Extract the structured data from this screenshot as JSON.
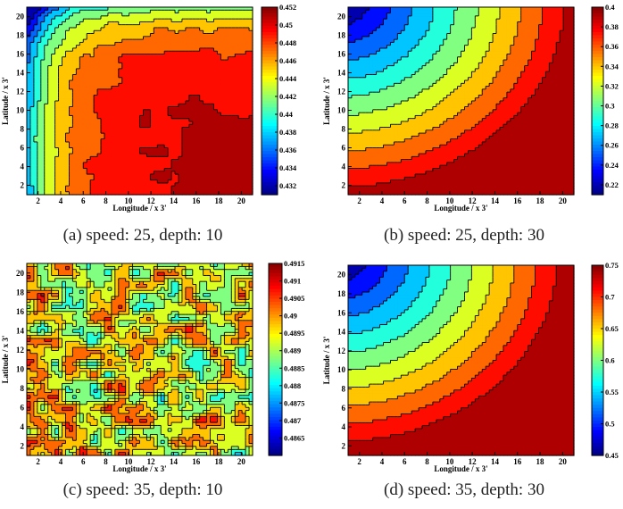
{
  "chart_data": [
    {
      "type": "heatmap",
      "caption": "(a) speed: 25, depth: 10",
      "xlabel": "Longitude / x 3'",
      "ylabel": "Latitude / x 3'",
      "xlim": [
        1,
        21
      ],
      "ylim": [
        1,
        21
      ],
      "xticks": [
        "2",
        "4",
        "6",
        "8",
        "10",
        "12",
        "14",
        "16",
        "18",
        "20"
      ],
      "yticks": [
        "2",
        "4",
        "6",
        "8",
        "10",
        "12",
        "14",
        "16",
        "18",
        "20"
      ],
      "colorbar": {
        "min": 0.431,
        "max": 0.452,
        "ticks": [
          "0.452",
          "0.45",
          "0.448",
          "0.446",
          "0.444",
          "0.442",
          "0.44",
          "0.438",
          "0.436",
          "0.434",
          "0.432"
        ]
      }
    },
    {
      "type": "heatmap",
      "caption": "(b) speed: 25, depth: 30",
      "xlabel": "Longitude / x 3'",
      "ylabel": "Latitude / x 3'",
      "xlim": [
        1,
        21
      ],
      "ylim": [
        1,
        21
      ],
      "xticks": [
        "2",
        "4",
        "6",
        "8",
        "10",
        "12",
        "14",
        "16",
        "18",
        "20"
      ],
      "yticks": [
        "2",
        "4",
        "6",
        "8",
        "10",
        "12",
        "14",
        "16",
        "18",
        "20"
      ],
      "colorbar": {
        "min": 0.21,
        "max": 0.4,
        "ticks": [
          "0.4",
          "0.38",
          "0.36",
          "0.34",
          "0.32",
          "0.3",
          "0.28",
          "0.26",
          "0.24",
          "0.22"
        ]
      }
    },
    {
      "type": "heatmap",
      "caption": "(c) speed: 35, depth: 10",
      "xlabel": "Longitude / x 3'",
      "ylabel": "Latitude / x 3'",
      "xlim": [
        1,
        21
      ],
      "ylim": [
        1,
        21
      ],
      "xticks": [
        "2",
        "4",
        "6",
        "8",
        "10",
        "12",
        "14",
        "16",
        "18",
        "20"
      ],
      "yticks": [
        "2",
        "4",
        "6",
        "8",
        "10",
        "12",
        "14",
        "16",
        "18",
        "20"
      ],
      "colorbar": {
        "min": 0.486,
        "max": 0.4915,
        "ticks": [
          "0.4915",
          "0.491",
          "0.4905",
          "0.49",
          "0.4895",
          "0.489",
          "0.4885",
          "0.488",
          "0.4875",
          "0.487",
          "0.4865"
        ]
      }
    },
    {
      "type": "heatmap",
      "caption": "(d) speed: 35, depth: 30",
      "xlabel": "Longitude / x 3'",
      "ylabel": "Latitude / x 3'",
      "xlim": [
        1,
        21
      ],
      "ylim": [
        1,
        21
      ],
      "xticks": [
        "2",
        "4",
        "6",
        "8",
        "10",
        "12",
        "14",
        "16",
        "18",
        "20"
      ],
      "yticks": [
        "2",
        "4",
        "6",
        "8",
        "10",
        "12",
        "14",
        "16",
        "18",
        "20"
      ],
      "colorbar": {
        "min": 0.45,
        "max": 0.75,
        "ticks": [
          "0.75",
          "0.7",
          "0.65",
          "0.6",
          "0.55",
          "0.5",
          "0.45"
        ]
      }
    }
  ]
}
